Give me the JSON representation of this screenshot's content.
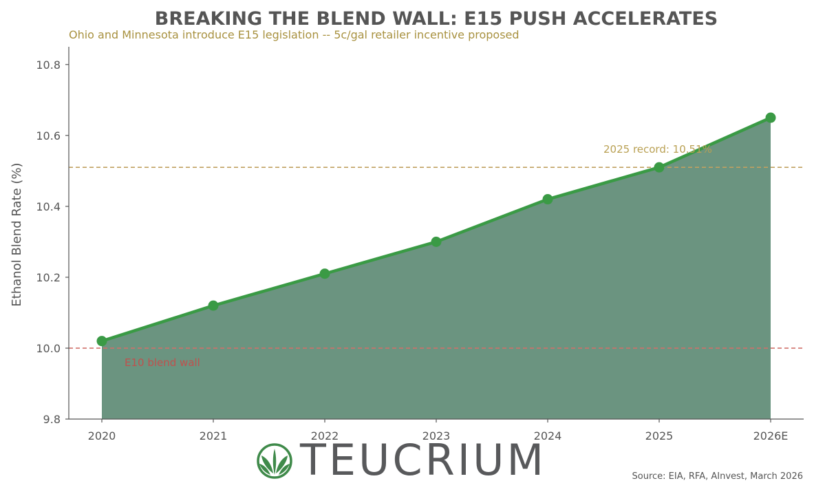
{
  "chart_data": {
    "type": "area",
    "title": "BREAKING THE BLEND WALL: E15 PUSH ACCELERATES",
    "subtitle": "Ohio and Minnesota introduce E15 legislation -- 5c/gal retailer incentive proposed",
    "xlabel": "",
    "ylabel": "Ethanol Blend Rate (%)",
    "categories": [
      "2020",
      "2021",
      "2022",
      "2023",
      "2024",
      "2025",
      "2026E"
    ],
    "series": [
      {
        "values": [
          10.02,
          10.12,
          10.21,
          10.3,
          10.42,
          10.51,
          10.65
        ],
        "color": "#3a9a45",
        "fill": "#6b9480"
      }
    ],
    "ylim": [
      9.8,
      10.85
    ],
    "yticks": [
      "9.8",
      "10.0",
      "10.2",
      "10.4",
      "10.6",
      "10.8"
    ],
    "reference_lines": [
      {
        "value": 10.51,
        "label": "2025 record: 10.51%",
        "color": "#c0a060"
      },
      {
        "value": 10.0,
        "label": "E10 blend wall",
        "color": "#d0706a"
      }
    ],
    "grid": false,
    "legend": "none"
  },
  "footer": {
    "brand": "TEUCRIUM",
    "source": "Source: EIA, RFA, AInvest, March 2026"
  },
  "colors": {
    "title": "#555555",
    "subtitle": "#a8913f",
    "line": "#3a9a45",
    "area": "#6b9480",
    "logo_green": "#3f8a4a",
    "logo_gray": "#58595b"
  },
  "icons": {
    "logo": "teucrium-leaf-icon"
  }
}
